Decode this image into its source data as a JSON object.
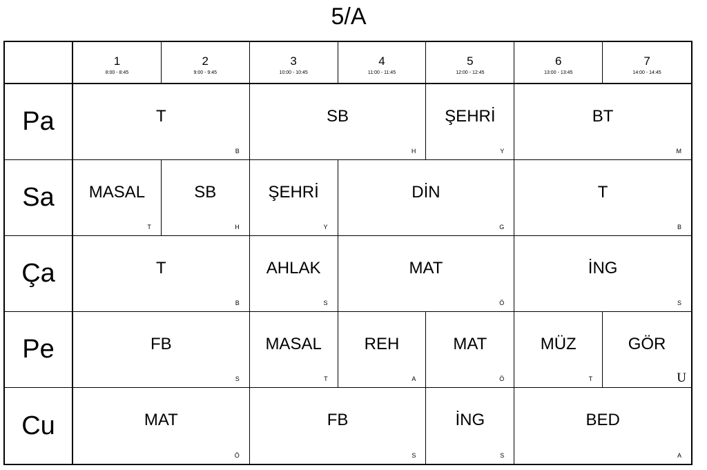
{
  "title": "5/A",
  "periods": [
    {
      "num": "1",
      "time": "8:00 - 8:45"
    },
    {
      "num": "2",
      "time": "9:00 - 9:45"
    },
    {
      "num": "3",
      "time": "10:00 - 10:45"
    },
    {
      "num": "4",
      "time": "11:00 - 11:45"
    },
    {
      "num": "5",
      "time": "12:00 - 12:45"
    },
    {
      "num": "6",
      "time": "13:00 - 13:45"
    },
    {
      "num": "7",
      "time": "14:00 - 14:45"
    }
  ],
  "days": [
    {
      "name": "Pa",
      "lessons": [
        {
          "subject": "T",
          "teacher": "B",
          "span": 2
        },
        {
          "subject": "SB",
          "teacher": "H",
          "span": 2
        },
        {
          "subject": "ŞEHRİ",
          "teacher": "Y",
          "span": 1
        },
        {
          "subject": "BT",
          "teacher": "M",
          "span": 2
        }
      ]
    },
    {
      "name": "Sa",
      "lessons": [
        {
          "subject": "MASAL",
          "teacher": "T",
          "span": 1
        },
        {
          "subject": "SB",
          "teacher": "H",
          "span": 1
        },
        {
          "subject": "ŞEHRİ",
          "teacher": "Y",
          "span": 1
        },
        {
          "subject": "DİN",
          "teacher": "G",
          "span": 2
        },
        {
          "subject": "T",
          "teacher": "B",
          "span": 2
        }
      ]
    },
    {
      "name": "Ça",
      "lessons": [
        {
          "subject": "T",
          "teacher": "B",
          "span": 2
        },
        {
          "subject": "AHLAK",
          "teacher": "S",
          "span": 1
        },
        {
          "subject": "MAT",
          "teacher": "Ö",
          "span": 2
        },
        {
          "subject": "İNG",
          "teacher": "S",
          "span": 2
        }
      ]
    },
    {
      "name": "Pe",
      "lessons": [
        {
          "subject": "FB",
          "teacher": "S",
          "span": 2
        },
        {
          "subject": "MASAL",
          "teacher": "T",
          "span": 1
        },
        {
          "subject": "REH",
          "teacher": "A",
          "span": 1
        },
        {
          "subject": "MAT",
          "teacher": "Ö",
          "span": 1
        },
        {
          "subject": "MÜZ",
          "teacher": "T",
          "span": 1
        },
        {
          "subject": "GÖR",
          "teacher": "U",
          "span": 1,
          "serif_teacher": true
        }
      ]
    },
    {
      "name": "Cu",
      "lessons": [
        {
          "subject": "MAT",
          "teacher": "Ö",
          "span": 2
        },
        {
          "subject": "FB",
          "teacher": "S",
          "span": 2
        },
        {
          "subject": "İNG",
          "teacher": "S",
          "span": 1
        },
        {
          "subject": "BED",
          "teacher": "A",
          "span": 2
        }
      ]
    }
  ]
}
